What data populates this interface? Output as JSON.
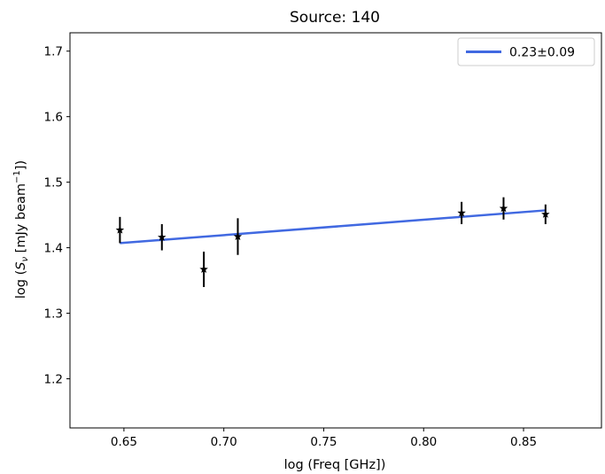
{
  "chart_data": {
    "type": "scatter",
    "title": "Source: 140",
    "xlabel": "log (Freq [GHz])",
    "ylabel": {
      "prefix": "log (",
      "symbol": "S",
      "subscript": "ν",
      "middle": " [mJy beam",
      "superscript": "−1",
      "suffix": "])"
    },
    "xlim": [
      0.623,
      0.889
    ],
    "ylim": [
      1.125,
      1.728
    ],
    "xticks": [
      0.65,
      0.7,
      0.75,
      0.8,
      0.85
    ],
    "xtick_labels": [
      "0.65",
      "0.70",
      "0.75",
      "0.80",
      "0.85"
    ],
    "yticks": [
      1.2,
      1.3,
      1.4,
      1.5,
      1.6,
      1.7
    ],
    "ytick_labels": [
      "1.2",
      "1.3",
      "1.4",
      "1.5",
      "1.6",
      "1.7"
    ],
    "grid": false,
    "legend_position": "top-right",
    "points": {
      "marker": "star",
      "color": "#000000",
      "x": [
        0.648,
        0.669,
        0.69,
        0.707,
        0.819,
        0.84,
        0.861
      ],
      "y": [
        1.427,
        1.416,
        1.367,
        1.417,
        1.453,
        1.46,
        1.451
      ],
      "yerr": [
        0.02,
        0.02,
        0.027,
        0.028,
        0.017,
        0.017,
        0.015
      ]
    },
    "fit": {
      "name": "0.23±0.09",
      "color": "#4169e1",
      "x": [
        0.648,
        0.861
      ],
      "y": [
        1.407,
        1.457
      ]
    }
  }
}
